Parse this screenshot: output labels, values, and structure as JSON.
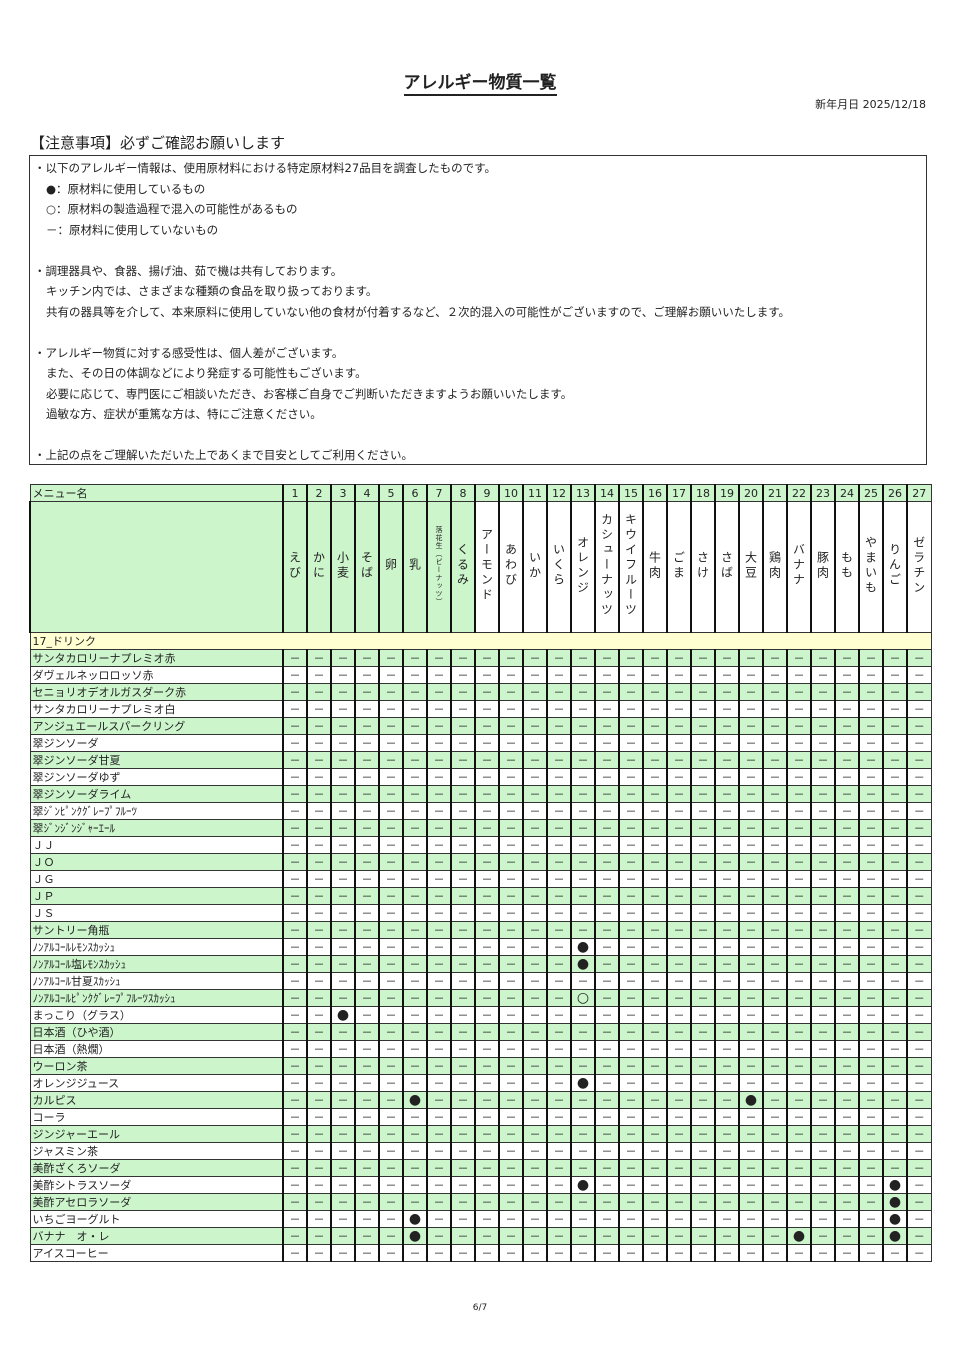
{
  "title": "アレルギー物質一覧",
  "date_label": "新年月日 2025/12/18",
  "notes_heading": "【注意事項】必ずご確認お願いします",
  "notes": [
    {
      "text": "・以下のアレルギー情報は、使用原材料における特定原材料27品目を調査したものです。",
      "indent": false
    },
    {
      "text": "●：原材料に使用しているもの",
      "indent": true
    },
    {
      "text": "○：原材料の製造過程で混入の可能性があるもの",
      "indent": true
    },
    {
      "text": "－：原材料に使用していないもの",
      "indent": true
    },
    {
      "text": "",
      "indent": false
    },
    {
      "text": "・調理器具や、食器、揚げ油、茹で機は共有しております。",
      "indent": false
    },
    {
      "text": "キッチン内では、さまざまな種類の食品を取り扱っております。",
      "indent": true
    },
    {
      "text": "共有の器具等を介して、本来原料に使用していない他の食材が付着するなど、２次的混入の可能性がございますので、ご理解お願いいたします。",
      "indent": true
    },
    {
      "text": "",
      "indent": false
    },
    {
      "text": "・アレルギー物質に対する感受性は、個人差がございます。",
      "indent": false
    },
    {
      "text": "また、その日の体調などにより発症する可能性もございます。",
      "indent": true
    },
    {
      "text": "必要に応じて、専門医にご相談いただき、お客様ご自身でご判断いただきますようお願いいたします。",
      "indent": true
    },
    {
      "text": "過敏な方、症状が重篤な方は、特にご注意ください。",
      "indent": true
    },
    {
      "text": "",
      "indent": false
    },
    {
      "text": "・上記の点をご理解いただいた上であくまで目安としてご利用ください。",
      "indent": false
    }
  ],
  "table": {
    "menu_header": "メニュー名",
    "allergens": [
      {
        "no": "1",
        "name": "えび"
      },
      {
        "no": "2",
        "name": "かに"
      },
      {
        "no": "3",
        "name": "小麦"
      },
      {
        "no": "4",
        "name": "そば"
      },
      {
        "no": "5",
        "name": "卵"
      },
      {
        "no": "6",
        "name": "乳"
      },
      {
        "no": "7",
        "name": "落花生（ピーナッツ）"
      },
      {
        "no": "8",
        "name": "くるみ"
      },
      {
        "no": "9",
        "name": "アーモンド"
      },
      {
        "no": "10",
        "name": "あわび"
      },
      {
        "no": "11",
        "name": "いか"
      },
      {
        "no": "12",
        "name": "いくら"
      },
      {
        "no": "13",
        "name": "オレンジ"
      },
      {
        "no": "14",
        "name": "カシューナッツ"
      },
      {
        "no": "15",
        "name": "キウイフルーツ"
      },
      {
        "no": "16",
        "name": "牛肉"
      },
      {
        "no": "17",
        "name": "ごま"
      },
      {
        "no": "18",
        "name": "さけ"
      },
      {
        "no": "19",
        "name": "さば"
      },
      {
        "no": "20",
        "name": "大豆"
      },
      {
        "no": "21",
        "name": "鶏肉"
      },
      {
        "no": "22",
        "name": "バナナ"
      },
      {
        "no": "23",
        "name": "豚肉"
      },
      {
        "no": "24",
        "name": "もも"
      },
      {
        "no": "25",
        "name": "やまいも"
      },
      {
        "no": "26",
        "name": "りんご"
      },
      {
        "no": "27",
        "name": "ゼラチン"
      }
    ],
    "category": "17_ドリンク",
    "empty_mark": "－",
    "rows": [
      {
        "name": "サンタカロリーナプレミオ赤",
        "marks": {}
      },
      {
        "name": "ダヴェルネッロロッソ赤",
        "marks": {}
      },
      {
        "name": "セニョリオデオルガスダーク赤",
        "marks": {}
      },
      {
        "name": "サンタカロリーナプレミオ白",
        "marks": {}
      },
      {
        "name": "アンジュエールスパークリング",
        "marks": {}
      },
      {
        "name": "翠ジンソーダ",
        "marks": {}
      },
      {
        "name": "翠ジンソーダ甘夏",
        "marks": {}
      },
      {
        "name": "翠ジンソーダゆず",
        "marks": {}
      },
      {
        "name": "翠ジンソーダライム",
        "marks": {}
      },
      {
        "name": "翠ｼﾞﾝﾋﾟﾝｸｸﾞﾚｰﾌﾟﾌﾙｰﾂ",
        "marks": {}
      },
      {
        "name": "翠ｼﾞﾝｼﾞﾝｼﾞｬｰｴｰﾙ",
        "marks": {}
      },
      {
        "name": "ＪＪ",
        "marks": {}
      },
      {
        "name": "ＪＯ",
        "marks": {}
      },
      {
        "name": "ＪＧ",
        "marks": {}
      },
      {
        "name": "ＪＰ",
        "marks": {}
      },
      {
        "name": "ＪＳ",
        "marks": {}
      },
      {
        "name": "サントリー角瓶",
        "marks": {}
      },
      {
        "name": "ﾉﾝｱﾙｺｰﾙﾚﾓﾝｽｶｯｼｭ",
        "marks": {
          "13": "●"
        }
      },
      {
        "name": "ﾉﾝｱﾙｺｰﾙ塩ﾚﾓﾝｽｶｯｼｭ",
        "marks": {
          "13": "●"
        }
      },
      {
        "name": "ﾉﾝｱﾙｺｰﾙ甘夏ｽｶｯｼｭ",
        "marks": {}
      },
      {
        "name": "ﾉﾝｱﾙｺｰﾙﾋﾟﾝｸｸﾞﾚｰﾌﾟﾌﾙｰﾂｽｶｯｼｭ",
        "marks": {
          "13": "○"
        }
      },
      {
        "name": "まっこり（グラス）",
        "marks": {
          "3": "●"
        }
      },
      {
        "name": "日本酒（ひや酒）",
        "marks": {}
      },
      {
        "name": "日本酒（熱燗）",
        "marks": {}
      },
      {
        "name": "ウーロン茶",
        "marks": {}
      },
      {
        "name": "オレンジジュース",
        "marks": {
          "13": "●"
        }
      },
      {
        "name": "カルピス",
        "marks": {
          "6": "●",
          "20": "●"
        }
      },
      {
        "name": "コーラ",
        "marks": {}
      },
      {
        "name": "ジンジャーエール",
        "marks": {}
      },
      {
        "name": "ジャスミン茶",
        "marks": {}
      },
      {
        "name": "美酢ざくろソーダ",
        "marks": {}
      },
      {
        "name": "美酢シトラスソーダ",
        "marks": {
          "13": "●",
          "26": "●"
        }
      },
      {
        "name": "美酢アセロラソーダ",
        "marks": {
          "26": "●"
        }
      },
      {
        "name": "いちごヨーグルト",
        "marks": {
          "6": "●",
          "26": "●"
        }
      },
      {
        "name": "バナナ　オ・レ",
        "marks": {
          "6": "●",
          "22": "●",
          "26": "●"
        }
      },
      {
        "name": "アイスコーヒー",
        "marks": {}
      }
    ]
  },
  "colors": {
    "row_green": "#ccf5cc",
    "category_yellow": "#ffffd2"
  },
  "page_number": "6/7"
}
